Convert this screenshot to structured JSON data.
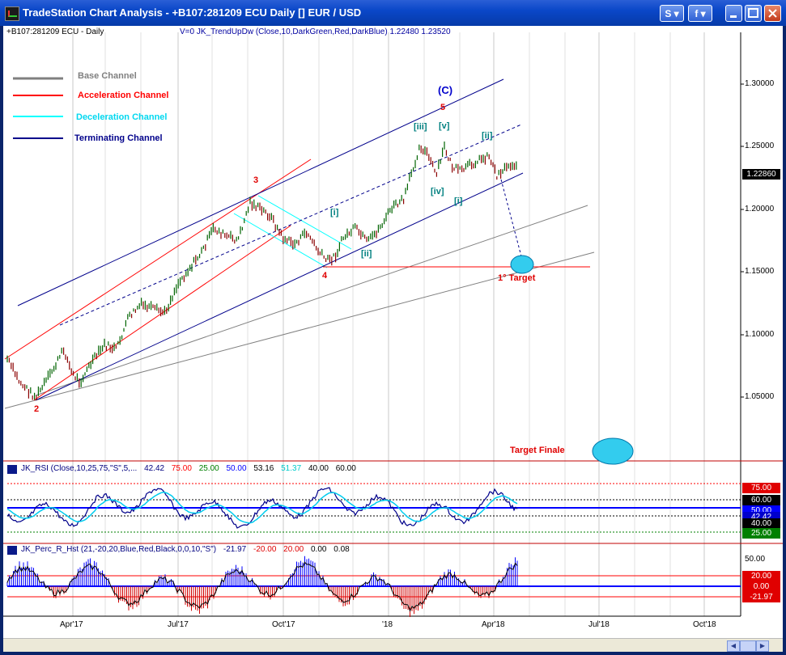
{
  "window": {
    "title": "TradeStation Chart Analysis  - +B107:281209 ECU Daily [] EUR / USD",
    "buttons": {
      "s": "S ▾",
      "f": "f ▾"
    }
  },
  "chart_header": {
    "symbol": "+B107:281209 ECU - Daily",
    "indicator": "V=0  JK_TrendUpDw (Close,10,DarkGreen,Red,DarkBlue)   1.22480  1.23520"
  },
  "legend": {
    "base": "Base Channel",
    "acceleration": "Acceleration Channel",
    "deceleration": "Deceleration Channel",
    "terminating": "Terminating Channel"
  },
  "waves": {
    "C": "(C)",
    "w5": "5",
    "w3": "3",
    "w4": "4",
    "w2": "2",
    "iii": "[iii]",
    "v": "[v]",
    "iv": "[iv]",
    "i_up": "[i]",
    "ii_up": "[ii]",
    "ii": "[ii]",
    "i": "[i]",
    "target1": "1° Target",
    "target_final": "Target Finale"
  },
  "price_axis": [
    "1.30000",
    "1.25000",
    "1.20000",
    "1.15000",
    "1.10000",
    "1.05000"
  ],
  "last_price": "1.22860",
  "rsi": {
    "header": "JK_RSI (Close,10,25,75,\"S\",5,...",
    "values": [
      "42.42",
      "75.00",
      "25.00",
      "50.00",
      "53.16",
      "51.37",
      "40.00",
      "60.00"
    ],
    "tags": {
      "t75": "75.00",
      "t60": "60.00",
      "t50": "50.00",
      "t42": "42.42",
      "t40": "40.00",
      "t25": "25.00"
    }
  },
  "percr": {
    "header": "JK_Perc_R_Hst (21,-20,20,Blue,Red,Black,0,0,10,\"S\")",
    "values": [
      "-21.97",
      "-20.00",
      "20.00",
      "0.00",
      "0.08"
    ],
    "axis50": "50.00",
    "tags": {
      "t20": "20.00",
      "t0": "0.00",
      "tneg": "-21.97"
    }
  },
  "x_axis": [
    "Apr'17",
    "Jul'17",
    "Oct'17",
    "'18",
    "Apr'18",
    "Jul'18",
    "Oct'18"
  ],
  "colors": {
    "titlebar": "#0A47C8",
    "up_bar": "#006400",
    "down_bar": "#8B0000",
    "base_channel": "#808080",
    "acceleration": "#FF0000",
    "deceleration": "#00FFFF",
    "terminating": "#00008B"
  }
}
